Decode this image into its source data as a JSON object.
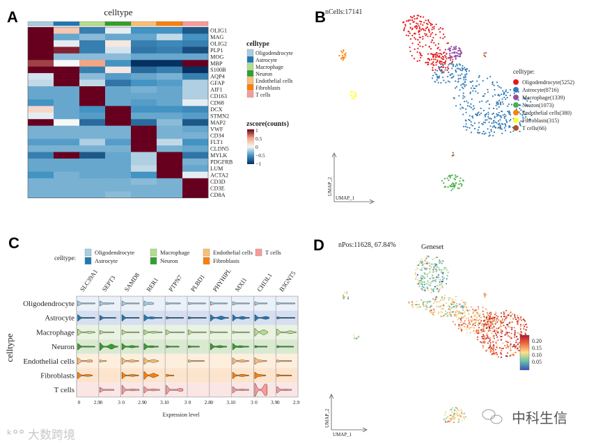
{
  "panels": {
    "a": "A",
    "b": "B",
    "c": "C",
    "d": "D"
  },
  "celltypes": [
    "Oligodendrocyte",
    "Astrocyte",
    "Macrophage",
    "Neuron",
    "Endothelial cells",
    "Fibroblasts",
    "T cells"
  ],
  "colors": {
    "Oligodendrocyte": "#a6cee3",
    "Astrocyte": "#1f78b4",
    "Macrophage": "#b2df8a",
    "Neuron": "#33a02c",
    "Endothelial cells": "#fdbf6f",
    "Fibroblasts": "#ff7f00",
    "T cells": "#fb9a99"
  },
  "watermarks": {
    "left": "大数跨境",
    "right": "中科生信"
  },
  "chart_data": [
    {
      "type": "heatmap",
      "panel": "A",
      "title": "celltype",
      "legend_title": "celltype",
      "colorbar_title": "zscore(counts)",
      "colorbar_ticks": [
        "1",
        "0.5",
        "0",
        "−0.5",
        "−1"
      ],
      "range": [
        -1,
        1
      ],
      "genes": [
        "OLIG1",
        "MAG",
        "OLIG2",
        "PLP1",
        "MOG",
        "MBP",
        "S100B",
        "AQP4",
        "GFAP",
        "AIF1",
        "CD163",
        "CD68",
        "DCX",
        "STMN2",
        "MAP2",
        "VWF",
        "CD34",
        "FLT1",
        "CLDN5",
        "MYLK",
        "PDGFRB",
        "LUM",
        "ACTA2",
        "CD3D",
        "CD3E",
        "CD8A"
      ],
      "values": [
        [
          1,
          0.3,
          -0.6,
          -0.05,
          -0.5,
          -0.5,
          -0.8
        ],
        [
          1,
          -0.4,
          -0.3,
          -0.4,
          -0.4,
          -0.15,
          -0.5
        ],
        [
          1,
          -0.05,
          -0.6,
          0.1,
          -0.6,
          -0.55,
          -0.6
        ],
        [
          1,
          0.9,
          -0.6,
          -0.1,
          -0.65,
          -0.6,
          -0.85
        ],
        [
          1,
          -0.3,
          -0.3,
          -0.3,
          -0.4,
          -0.4,
          -0.4
        ],
        [
          0.8,
          0,
          0.5,
          -0.5,
          -1,
          -1,
          1
        ],
        [
          1,
          1,
          -0.6,
          0.1,
          -0.7,
          -0.6,
          -1
        ],
        [
          -0.1,
          1,
          -0.3,
          -0.45,
          -0.4,
          -0.35,
          -0.6
        ],
        [
          -0.15,
          1,
          -0.15,
          -0.65,
          -0.5,
          -0.45,
          -0.2
        ],
        [
          -0.4,
          -0.4,
          1,
          -0.4,
          -0.35,
          -0.4,
          -0.2
        ],
        [
          -0.4,
          -0.4,
          1,
          -0.4,
          -0.4,
          -0.4,
          -0.2
        ],
        [
          -0.5,
          -0.4,
          1,
          -0.4,
          -0.45,
          -0.4,
          -0.05
        ],
        [
          0.2,
          -0.4,
          -0.5,
          1,
          -0.5,
          -0.5,
          -0.55
        ],
        [
          -0.05,
          -0.4,
          -0.45,
          1,
          -0.4,
          -0.4,
          -0.45
        ],
        [
          1,
          0,
          -0.7,
          1,
          -0.7,
          -0.3,
          -0.8
        ],
        [
          -0.35,
          -0.35,
          -0.35,
          -0.35,
          1,
          -0.35,
          -0.4
        ],
        [
          -0.35,
          -0.35,
          -0.35,
          -0.35,
          1,
          -0.35,
          -0.35
        ],
        [
          -0.45,
          -0.45,
          -0.2,
          -0.45,
          1,
          -0.15,
          -0.5
        ],
        [
          -0.35,
          -0.35,
          -0.35,
          -0.35,
          1,
          -0.35,
          -0.4
        ],
        [
          -0.6,
          1,
          -0.8,
          -0.4,
          -0.2,
          1,
          -0.65
        ],
        [
          -0.4,
          -0.4,
          -0.4,
          -0.4,
          -0.2,
          1,
          -0.35
        ],
        [
          -0.4,
          -0.4,
          -0.4,
          -0.4,
          -0.15,
          1,
          -0.4
        ],
        [
          -0.5,
          -0.35,
          -0.4,
          -0.4,
          -0.5,
          1,
          -0.05
        ],
        [
          -0.35,
          -0.35,
          -0.35,
          -0.35,
          -0.3,
          -0.35,
          1
        ],
        [
          -0.35,
          -0.35,
          -0.35,
          -0.35,
          -0.35,
          -0.35,
          1
        ],
        [
          -0.35,
          -0.35,
          -0.35,
          -0.3,
          -0.35,
          -0.35,
          1
        ]
      ]
    },
    {
      "type": "scatter",
      "panel": "B",
      "title": "nCells:17141",
      "legend_title": "celltype:",
      "xlabel": "UMAP_1",
      "ylabel": "UMAP_2",
      "legend": [
        "Oligodendrocyte(5252)",
        "Astrocyte(8716)",
        "Macrophage(1339)",
        "Neuron(1073)",
        "Endothelial cells(380)",
        "Fibroblasts(315)",
        "T cells(66)"
      ],
      "legend_colors": [
        "#e41a1c",
        "#377eb8",
        "#984ea3",
        "#4daf4a",
        "#ff7f00",
        "#ffff33",
        "#a65628"
      ],
      "counts": [
        5252,
        8716,
        1339,
        1073,
        380,
        315,
        66
      ]
    },
    {
      "type": "violin",
      "panel": "C",
      "legend_title": "celltype:",
      "ylabel": "celltype",
      "xlabel": "Expression level",
      "genes": [
        "SLC39A1",
        "SEPT3",
        "SAMD8",
        "RER1",
        "PTPN7",
        "PLBD1",
        "PHYHIPL",
        "MXI1",
        "CHI3L1",
        "B3GNT5"
      ],
      "xmax": [
        2.9,
        3,
        2.9,
        3.1,
        3,
        2.8,
        3.1,
        3,
        3.9,
        2.9
      ],
      "xmax_labels": [
        "2.9",
        "3",
        "2.9",
        "3.1",
        "3",
        "2.8",
        "3.1",
        "3",
        "3.9",
        "2.9"
      ],
      "xmin_label": "0",
      "violins_note": "per gene, per celltype: [max expression, density at 0, secondary mode, secondary density]",
      "violins": [
        [
          [
            2.6,
            3,
            0,
            0
          ],
          [
            2.6,
            4,
            0,
            0
          ],
          [
            2.6,
            4,
            1.8,
            1
          ],
          [
            2.6,
            4,
            0,
            0
          ],
          [
            2.2,
            4,
            1.8,
            1
          ],
          [
            2.2,
            4,
            1.5,
            0.8
          ],
          [
            0,
            0,
            0,
            0
          ]
        ],
        [
          [
            2.2,
            3,
            1,
            0.5
          ],
          [
            2.5,
            3,
            0,
            0
          ],
          [
            2.2,
            2,
            0,
            0
          ],
          [
            2.8,
            5,
            1.8,
            3
          ],
          [
            1,
            1,
            0,
            0
          ],
          [
            0,
            0,
            0,
            0
          ],
          [
            2.2,
            3,
            0,
            0
          ]
        ],
        [
          [
            2.6,
            3,
            0,
            0
          ],
          [
            2.6,
            4,
            0,
            0
          ],
          [
            2.6,
            3,
            0,
            0
          ],
          [
            2.5,
            4,
            1.5,
            1
          ],
          [
            2.5,
            4,
            1.5,
            1
          ],
          [
            2.5,
            4,
            1.6,
            0.8
          ],
          [
            2.6,
            6,
            1.6,
            0.8
          ]
        ],
        [
          [
            1.5,
            3,
            1,
            1
          ],
          [
            2.9,
            4,
            1.2,
            1
          ],
          [
            2.9,
            3,
            1.5,
            0.8
          ],
          [
            2.3,
            4,
            1.2,
            0.8
          ],
          [
            2.3,
            4,
            1.5,
            1.5
          ],
          [
            2.3,
            5,
            1.5,
            2.5
          ],
          [
            2.5,
            4,
            1.5,
            0.8
          ]
        ],
        [
          [
            2.2,
            1,
            0,
            0
          ],
          [
            2.7,
            1,
            0,
            0
          ],
          [
            2.8,
            3,
            0,
            0
          ],
          [
            2,
            1,
            0,
            0
          ],
          [
            0,
            0,
            0,
            0
          ],
          [
            1.2,
            1,
            0,
            0
          ],
          [
            2.6,
            6,
            2.2,
            1.5
          ]
        ],
        [
          [
            2.5,
            1,
            0,
            0
          ],
          [
            2.6,
            1,
            0,
            0
          ],
          [
            2.6,
            3,
            0,
            0
          ],
          [
            1.6,
            1,
            0,
            0
          ],
          [
            2.3,
            1,
            0,
            0
          ],
          [
            0,
            0,
            0,
            0
          ],
          [
            0,
            0,
            0,
            0
          ]
        ],
        [
          [
            2.7,
            2,
            0,
            0
          ],
          [
            2.9,
            4,
            1.7,
            2
          ],
          [
            2.7,
            1,
            0,
            0
          ],
          [
            2.6,
            4,
            1.5,
            1
          ],
          [
            0,
            0,
            0,
            0
          ],
          [
            0,
            0,
            0,
            0
          ],
          [
            0,
            0,
            0,
            0
          ]
        ],
        [
          [
            2.6,
            2,
            0,
            0
          ],
          [
            2.6,
            4,
            1.5,
            1.5
          ],
          [
            2.6,
            1,
            0,
            0
          ],
          [
            2.5,
            4,
            1.2,
            0.8
          ],
          [
            2.5,
            4,
            1.5,
            1
          ],
          [
            2.5,
            4,
            1.5,
            1
          ],
          [
            2.5,
            4,
            1.5,
            0.5
          ]
        ],
        [
          [
            2.5,
            2,
            0,
            0
          ],
          [
            2.9,
            4,
            2.2,
            1.5
          ],
          [
            2.6,
            5,
            1.8,
            3
          ],
          [
            2.5,
            1,
            0,
            0
          ],
          [
            2.4,
            4,
            1,
            0.8
          ],
          [
            2.2,
            4,
            1,
            0.8
          ],
          [
            2.5,
            9,
            2.2,
            8
          ]
        ],
        [
          [
            2.7,
            1,
            0,
            0
          ],
          [
            2.7,
            1,
            0,
            0
          ],
          [
            2.9,
            4,
            2,
            1.5
          ],
          [
            2.5,
            1,
            0,
            0
          ],
          [
            2.2,
            1,
            0,
            0
          ],
          [
            2.2,
            1,
            0,
            0
          ],
          [
            2.2,
            4,
            1.3,
            0.5
          ]
        ]
      ]
    },
    {
      "type": "scatter",
      "panel": "D",
      "title": "Geneset",
      "subtitle": "nPos:11628, 67.84%",
      "xlabel": "UMAP_1",
      "ylabel": "UMAP_2",
      "colorbar_ticks": [
        "0.20",
        "0.15",
        "0.10",
        "0.05"
      ],
      "colorbar_range": [
        0.02,
        0.22
      ]
    }
  ]
}
